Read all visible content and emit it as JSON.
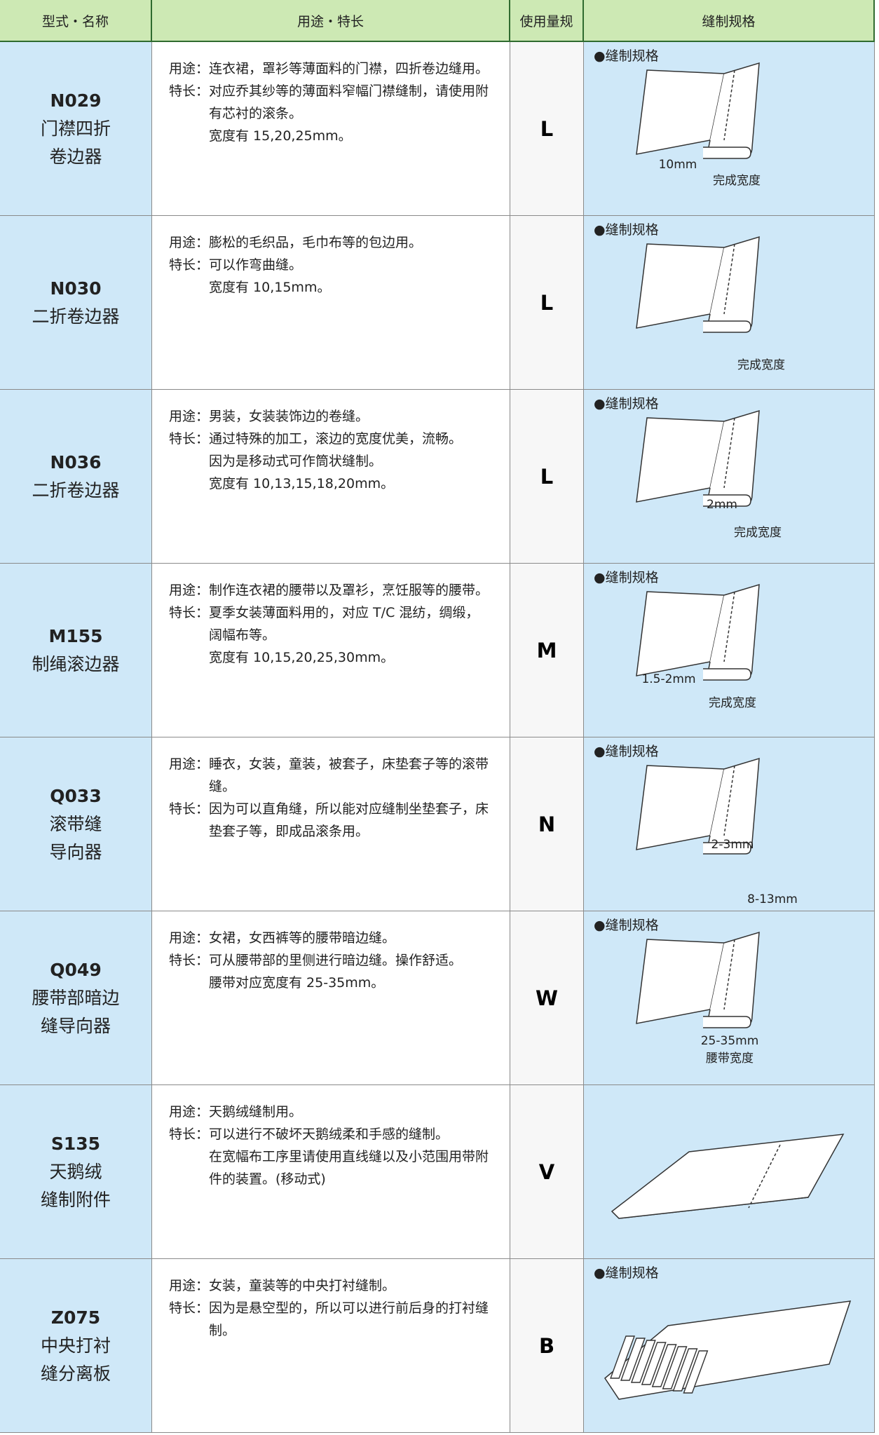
{
  "header": [
    "型式・名称",
    "用途・特长",
    "使用量规",
    "缝制规格"
  ],
  "labels": {
    "usage": "用途：",
    "feature": "特长："
  },
  "rows": [
    {
      "code": "N029",
      "name_lines": [
        "门襟四折",
        "卷边器"
      ],
      "usage": "连衣裙，罩衫等薄面料的门襟，四折卷边缝用。",
      "feature": "对应乔其纱等的薄面料窄幅门襟缝制，请使用附有芯衬的滚条。",
      "feature_extra": [
        "宽度有 15,20,25mm。"
      ],
      "gauge": "L",
      "spec_title": "●缝制规格",
      "spec_labels": [
        "10mm",
        "完成宽度"
      ]
    },
    {
      "code": "N030",
      "name_lines": [
        "二折卷边器"
      ],
      "usage": "膨松的毛织品，毛巾布等的包边用。",
      "feature": "可以作弯曲缝。",
      "feature_extra": [
        "宽度有 10,15mm。"
      ],
      "gauge": "L",
      "spec_title": "●缝制规格",
      "spec_labels": [
        "完成宽度"
      ]
    },
    {
      "code": "N036",
      "name_lines": [
        "二折卷边器"
      ],
      "usage": "男装，女装装饰边的卷缝。",
      "feature": "通过特殊的加工，滚边的宽度优美，流畅。",
      "feature_extra": [
        "因为是移动式可作筒状缝制。",
        "宽度有 10,13,15,18,20mm。"
      ],
      "gauge": "L",
      "spec_title": "●缝制规格",
      "spec_labels": [
        "2mm",
        "完成宽度"
      ]
    },
    {
      "code": "M155",
      "name_lines": [
        "制绳滚边器"
      ],
      "usage": "制作连衣裙的腰带以及罩衫，烹饪服等的腰带。",
      "feature": "夏季女装薄面料用的，对应 T/C 混纺，绸缎，阔幅布等。",
      "feature_extra": [
        "宽度有 10,15,20,25,30mm。"
      ],
      "gauge": "M",
      "spec_title": "●缝制规格",
      "spec_labels": [
        "1.5-2mm",
        "完成宽度"
      ]
    },
    {
      "code": "Q033",
      "name_lines": [
        "滚带缝",
        "导向器"
      ],
      "usage": "睡衣，女装，童装，被套子，床垫套子等的滚带缝。",
      "feature": "因为可以直角缝，所以能对应缝制坐垫套子，床垫套子等，即成品滚条用。",
      "feature_extra": [],
      "gauge": "N",
      "spec_title": "●缝制规格",
      "spec_labels": [
        "2-3mm",
        "8-13mm"
      ]
    },
    {
      "code": "Q049",
      "name_lines": [
        "腰带部暗边",
        "缝导向器"
      ],
      "usage": "女裙，女西裤等的腰带暗边缝。",
      "feature": "可从腰带部的里侧进行暗边缝。操作舒适。",
      "feature_extra": [
        "腰带对应宽度有 25-35mm。"
      ],
      "gauge": "W",
      "spec_title": "●缝制规格",
      "spec_labels": [
        "25-35mm",
        "腰带宽度"
      ]
    },
    {
      "code": "S135",
      "name_lines": [
        "天鹅绒",
        "缝制附件"
      ],
      "usage": "天鹅绒缝制用。",
      "feature": "可以进行不破坏天鹅绒柔和手感的缝制。",
      "feature_extra": [
        "在宽幅布工序里请使用直线缝以及小范围用带附件的装置。(移动式)"
      ],
      "gauge": "V",
      "spec_labels": []
    },
    {
      "code": "Z075",
      "name_lines": [
        "中央打衬",
        "缝分离板"
      ],
      "usage": "女装，童装等的中央打衬缝制。",
      "feature": "因为是悬空型的，所以可以进行前后身的打衬缝制。",
      "feature_extra": [],
      "gauge": "B",
      "spec_title": "●缝制规格",
      "spec_labels": []
    }
  ]
}
